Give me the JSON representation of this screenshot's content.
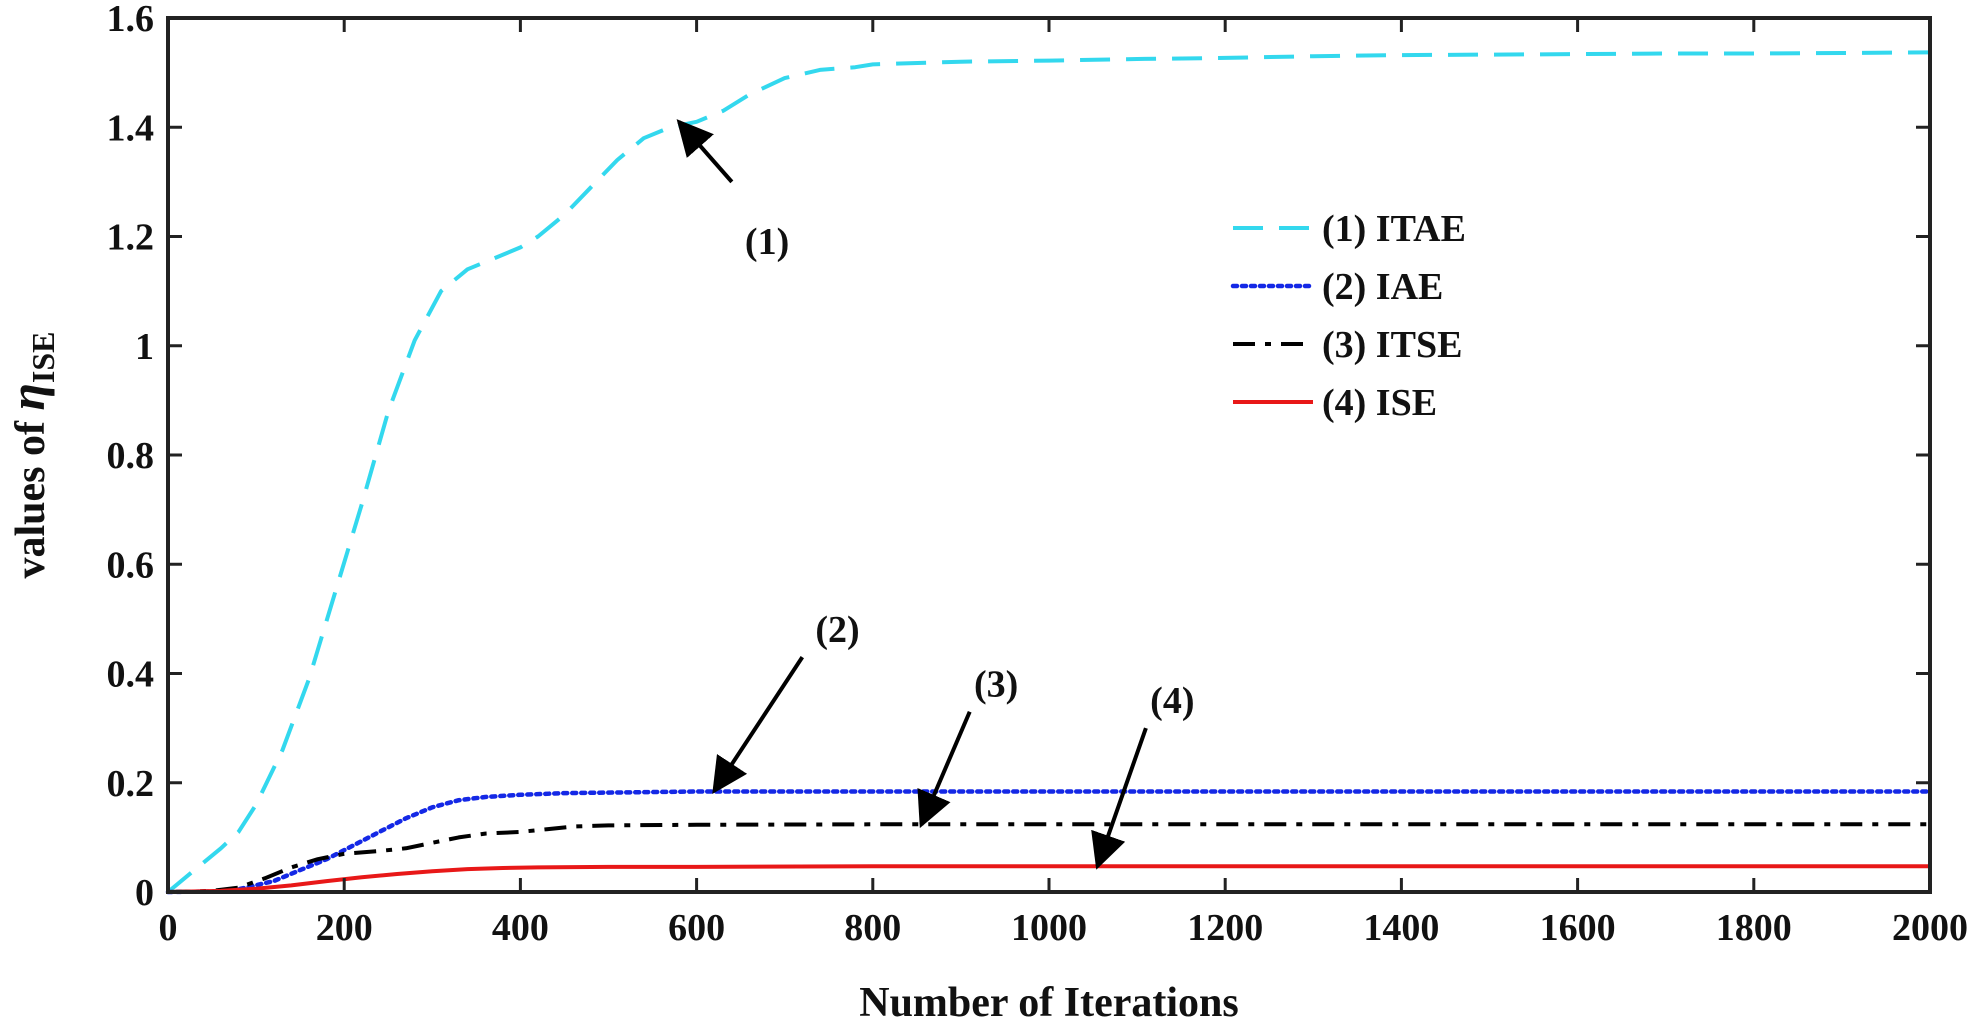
{
  "chart_data": {
    "type": "line",
    "xlabel": "Number of Iterations",
    "ylabel": {
      "prefix": "values of ",
      "symbol": "η",
      "subscript": "ISE"
    },
    "xlim": [
      0,
      2000
    ],
    "ylim": [
      0,
      1.6
    ],
    "x_ticks": [
      0,
      200,
      400,
      600,
      800,
      1000,
      1200,
      1400,
      1600,
      1800,
      2000
    ],
    "y_ticks": [
      0,
      0.2,
      0.4,
      0.6,
      0.8,
      1,
      1.2,
      1.4,
      1.6
    ],
    "x_tick_labels": [
      "0",
      "200",
      "400",
      "600",
      "800",
      "1000",
      "1200",
      "1400",
      "1600",
      "1800",
      "2000"
    ],
    "y_tick_labels": [
      "0",
      "0.2",
      "0.4",
      "0.6",
      "0.8",
      "1",
      "1.2",
      "1.4",
      "1.6"
    ],
    "grid": false,
    "legend_position": "right",
    "series": [
      {
        "name": "(1) ITAE",
        "color": "#33d8ee",
        "dash": "dashed",
        "x": [
          0,
          30,
          60,
          80,
          100,
          130,
          160,
          190,
          220,
          250,
          280,
          310,
          340,
          370,
          400,
          420,
          450,
          480,
          510,
          540,
          570,
          600,
          630,
          660,
          700,
          740,
          780,
          800,
          900,
          1000,
          1100,
          1200,
          1300,
          1400,
          1500,
          1600,
          1700,
          1800,
          1900,
          2000
        ],
        "y": [
          0,
          0.04,
          0.08,
          0.11,
          0.16,
          0.26,
          0.39,
          0.55,
          0.71,
          0.88,
          1.01,
          1.1,
          1.14,
          1.16,
          1.18,
          1.2,
          1.24,
          1.29,
          1.34,
          1.38,
          1.4,
          1.41,
          1.43,
          1.46,
          1.49,
          1.505,
          1.51,
          1.515,
          1.52,
          1.522,
          1.525,
          1.527,
          1.53,
          1.532,
          1.533,
          1.534,
          1.535,
          1.535,
          1.536,
          1.537
        ]
      },
      {
        "name": "(2) IAE",
        "color": "#1428e6",
        "dash": "dotted",
        "x": [
          0,
          50,
          80,
          120,
          150,
          180,
          210,
          240,
          270,
          300,
          330,
          360,
          400,
          450,
          500,
          600,
          700,
          800,
          1000,
          1200,
          1400,
          1600,
          1800,
          2000
        ],
        "y": [
          0,
          0.001,
          0.005,
          0.02,
          0.04,
          0.06,
          0.085,
          0.11,
          0.135,
          0.155,
          0.168,
          0.174,
          0.178,
          0.181,
          0.182,
          0.184,
          0.184,
          0.184,
          0.184,
          0.184,
          0.184,
          0.184,
          0.184,
          0.184
        ]
      },
      {
        "name": "(3) ITSE",
        "color": "#000000",
        "dash": "dashdot",
        "x": [
          0,
          50,
          80,
          110,
          140,
          170,
          200,
          240,
          270,
          300,
          330,
          360,
          400,
          430,
          460,
          500,
          600,
          800,
          1000,
          1200,
          1400,
          1600,
          1800,
          2000
        ],
        "y": [
          0,
          0.002,
          0.008,
          0.025,
          0.045,
          0.06,
          0.07,
          0.075,
          0.08,
          0.09,
          0.1,
          0.107,
          0.11,
          0.115,
          0.12,
          0.122,
          0.123,
          0.124,
          0.124,
          0.124,
          0.124,
          0.124,
          0.124,
          0.124
        ]
      },
      {
        "name": "(4) ISE",
        "color": "#e81818",
        "dash": "solid",
        "x": [
          0,
          60,
          100,
          140,
          180,
          220,
          260,
          300,
          340,
          380,
          420,
          500,
          600,
          800,
          1000,
          1200,
          1400,
          1600,
          1800,
          2000
        ],
        "y": [
          0,
          0.002,
          0.006,
          0.012,
          0.02,
          0.027,
          0.033,
          0.038,
          0.042,
          0.044,
          0.045,
          0.046,
          0.046,
          0.047,
          0.047,
          0.047,
          0.047,
          0.047,
          0.047,
          0.047
        ]
      }
    ],
    "annotations": [
      {
        "text": "(1)",
        "label_at": [
          680,
          1.19
        ],
        "arrow_from": [
          640,
          1.3
        ],
        "arrow_to": [
          580,
          1.41
        ]
      },
      {
        "text": "(2)",
        "label_at": [
          760,
          0.48
        ],
        "arrow_from": [
          720,
          0.43
        ],
        "arrow_to": [
          620,
          0.185
        ]
      },
      {
        "text": "(3)",
        "label_at": [
          940,
          0.38
        ],
        "arrow_from": [
          910,
          0.33
        ],
        "arrow_to": [
          855,
          0.123
        ]
      },
      {
        "text": "(4)",
        "label_at": [
          1140,
          0.35
        ],
        "arrow_from": [
          1110,
          0.3
        ],
        "arrow_to": [
          1055,
          0.047
        ]
      }
    ]
  }
}
